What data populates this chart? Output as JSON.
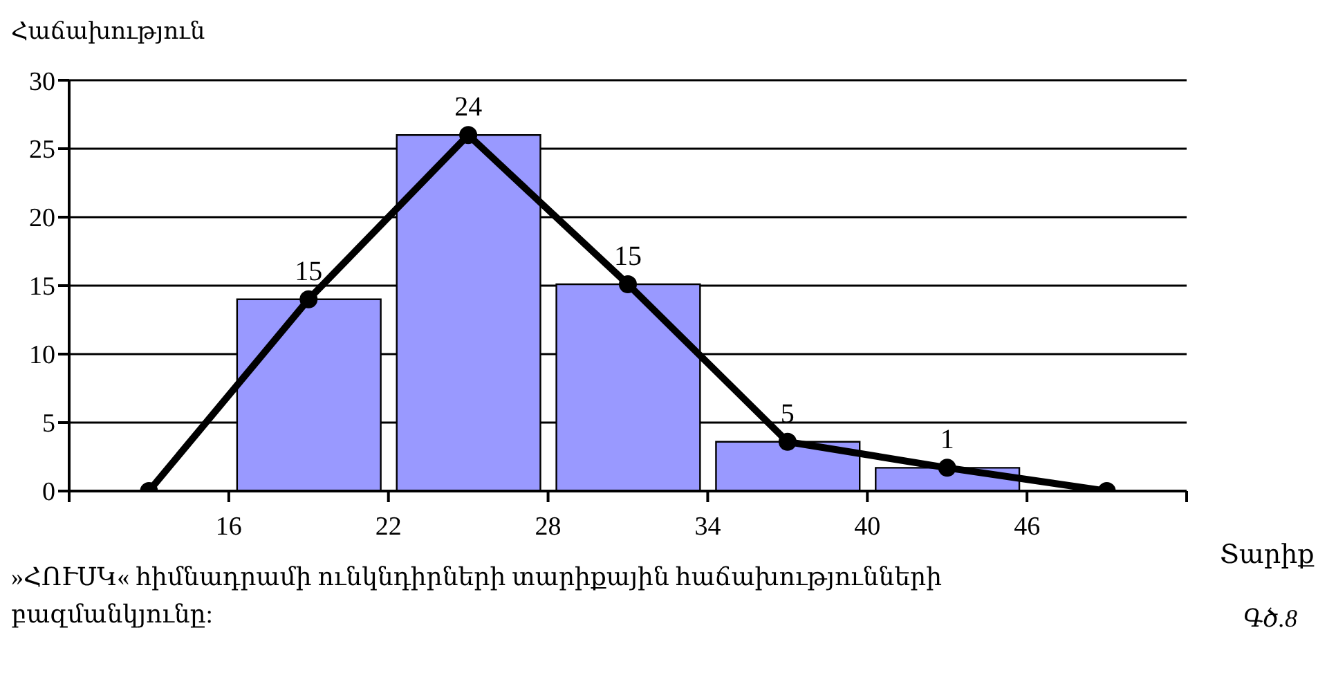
{
  "chart_data": {
    "type": "histogram",
    "ylabel": "Հաճախություն",
    "xlabel": "Տարիք",
    "series": [
      {
        "color": "#9999ff",
        "bins": [
          16,
          22,
          28,
          34,
          40,
          46
        ],
        "values": [
          14,
          26,
          15.1,
          3.6,
          1.7
        ]
      },
      {
        "type": "line",
        "color": "#000000",
        "x": [
          13,
          19,
          25,
          31,
          37,
          43,
          49
        ],
        "values": [
          0,
          14,
          26,
          15.1,
          3.6,
          1.7,
          0
        ],
        "marker": "circle",
        "line_style": "solid"
      }
    ],
    "xlim": [
      10,
      52
    ],
    "xticks": [
      {
        "value": 10,
        "label": null
      },
      16,
      22,
      28,
      34,
      40,
      46,
      {
        "value": 52,
        "label": null
      }
    ],
    "ylim": [
      0,
      30
    ],
    "yticks": [
      0,
      5,
      10,
      15,
      20,
      25,
      30
    ],
    "grid": "y",
    "annotations": [
      {
        "text": "15",
        "x": 19,
        "y": 14
      },
      {
        "text": "24",
        "x": 25,
        "y": 26
      },
      {
        "text": "15",
        "x": 31,
        "y": 15.1
      },
      {
        "text": "5",
        "x": 37,
        "y": 3.6
      },
      {
        "text": "1",
        "x": 43,
        "y": 1.7
      },
      "»ՀՈՒՍԿ« հիմնադրամի ունկնդիրների տարիքային հաճախությունների բազմանկյունը:",
      "Գծ.8"
    ]
  }
}
